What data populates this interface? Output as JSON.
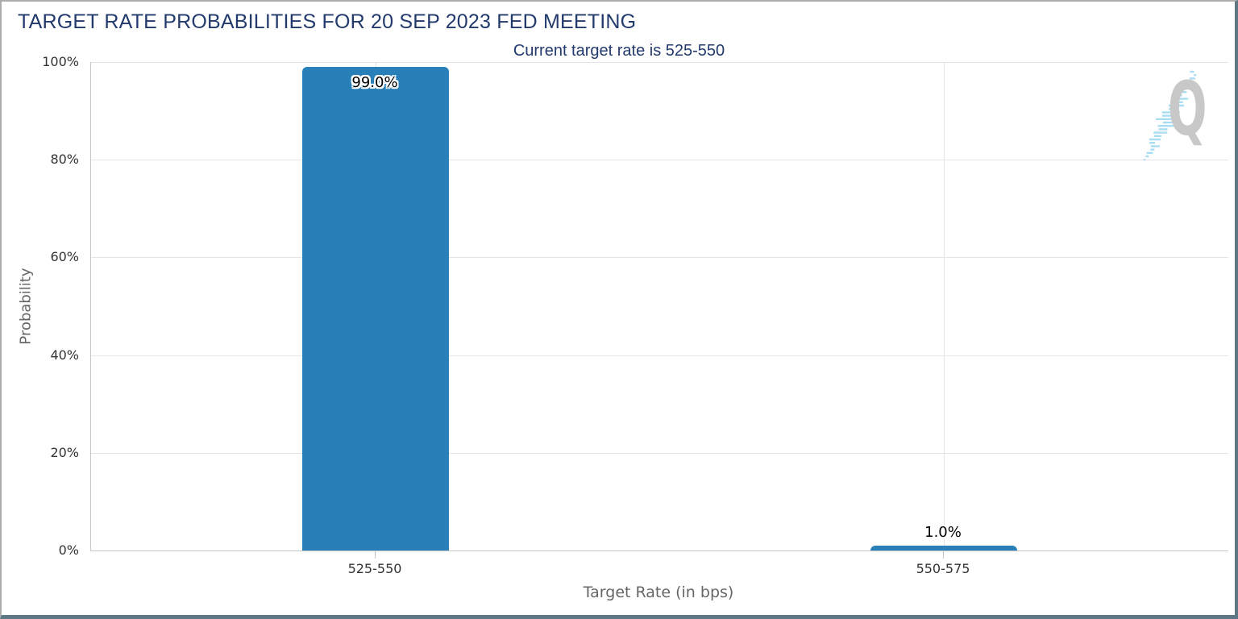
{
  "header": {
    "title": "TARGET RATE PROBABILITIES FOR 20 SEP 2023 FED MEETING",
    "subtitle": "Current target rate is 525-550"
  },
  "watermark": {
    "letter": "Q"
  },
  "chart_data": {
    "type": "bar",
    "title": "TARGET RATE PROBABILITIES FOR 20 SEP 2023 FED MEETING",
    "subtitle": "Current target rate is 525-550",
    "categories": [
      "525-550",
      "550-575"
    ],
    "values": [
      99.0,
      1.0
    ],
    "data_labels": [
      "99.0%",
      "1.0%"
    ],
    "xlabel": "Target Rate (in bps)",
    "ylabel": "Probability",
    "ylim": [
      0,
      100
    ],
    "yticks": [
      0,
      20,
      40,
      60,
      80,
      100
    ],
    "ytick_labels": [
      "0%",
      "20%",
      "40%",
      "60%",
      "80%",
      "100%"
    ],
    "bar_color": "#2980b9",
    "grid": true,
    "legend": false
  },
  "colors": {
    "title_text": "#233a6d",
    "tick_label": "#333333",
    "axis_title": "#666666",
    "gridline": "#e4e4e8",
    "axis_line": "#c6c6c6",
    "watermark_letter": "#c8c8c8",
    "watermark_dash": "#a9ddf1",
    "frame_top_left": "#adadad",
    "frame_bottom_right": "#5d7884"
  }
}
